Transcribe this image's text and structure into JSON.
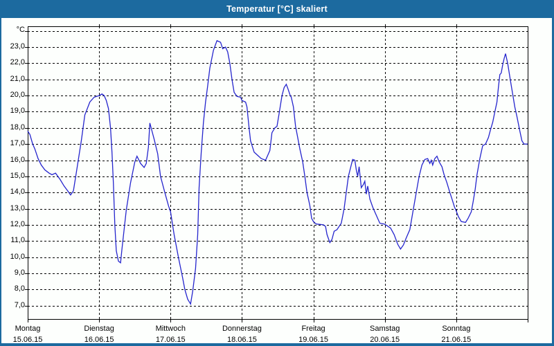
{
  "window": {
    "title": "Temperatur [°C] skaliert"
  },
  "colors": {
    "frame_blue": "#1c6a9f",
    "titlebar_bg": "#1c6a9f",
    "line_blue": "#2424cd",
    "grid_black": "#000000",
    "plot_bg": "#fdfffd"
  },
  "chart_data": {
    "type": "line",
    "title": "Temperatur [°C] skaliert",
    "ylabel": "°C",
    "xlabel": "",
    "grid": "dashed",
    "legend": "none",
    "ylim": [
      6.17,
      24.29
    ],
    "xlim_days": [
      0,
      7
    ],
    "ygrid_values": [
      7,
      8,
      9,
      10,
      11,
      12,
      13,
      14,
      15,
      16,
      17,
      18,
      19,
      20,
      21,
      22,
      23,
      24
    ],
    "yticks": [
      {
        "v": 23,
        "label": "23,0"
      },
      {
        "v": 22,
        "label": "22,0"
      },
      {
        "v": 21,
        "label": "21,0"
      },
      {
        "v": 20,
        "label": "20,0"
      },
      {
        "v": 19,
        "label": "19,0"
      },
      {
        "v": 18,
        "label": "18,0"
      },
      {
        "v": 17,
        "label": "17,0"
      },
      {
        "v": 16,
        "label": "16,0"
      },
      {
        "v": 15,
        "label": "15,0"
      },
      {
        "v": 14,
        "label": "14,0"
      },
      {
        "v": 13,
        "label": "13,0"
      },
      {
        "v": 12,
        "label": "12,0"
      },
      {
        "v": 11,
        "label": "11,0"
      },
      {
        "v": 10,
        "label": "10,0"
      },
      {
        "v": 9,
        "label": "9,0"
      },
      {
        "v": 8,
        "label": "8,0"
      },
      {
        "v": 7,
        "label": "7,0"
      }
    ],
    "unit_tick_value": 24,
    "categories": [
      {
        "day": 0,
        "name": "Montag",
        "date": "15.06.15"
      },
      {
        "day": 1,
        "name": "Dienstag",
        "date": "16.06.15"
      },
      {
        "day": 2,
        "name": "Mittwoch",
        "date": "17.06.15"
      },
      {
        "day": 3,
        "name": "Donnerstag",
        "date": "18.06.15"
      },
      {
        "day": 4,
        "name": "Freitag",
        "date": "19.06.15"
      },
      {
        "day": 5,
        "name": "Samstag",
        "date": "20.06.15"
      },
      {
        "day": 6,
        "name": "Sonntag",
        "date": "21.06.15"
      }
    ],
    "series": [
      {
        "name": "Temperatur",
        "color": "#2424cd",
        "points": [
          [
            0.0,
            17.8
          ],
          [
            0.03,
            17.6
          ],
          [
            0.07,
            17.0
          ],
          [
            0.1,
            16.7
          ],
          [
            0.145,
            16.1
          ],
          [
            0.19,
            15.7
          ],
          [
            0.24,
            15.4
          ],
          [
            0.3,
            15.2
          ],
          [
            0.34,
            15.1
          ],
          [
            0.39,
            15.2
          ],
          [
            0.455,
            14.8
          ],
          [
            0.51,
            14.4
          ],
          [
            0.56,
            14.1
          ],
          [
            0.6,
            13.85
          ],
          [
            0.64,
            14.1
          ],
          [
            0.68,
            15.2
          ],
          [
            0.75,
            17.2
          ],
          [
            0.8,
            18.8
          ],
          [
            0.87,
            19.6
          ],
          [
            0.93,
            19.9
          ],
          [
            1.0,
            20.0
          ],
          [
            1.04,
            20.1
          ],
          [
            1.07,
            20.0
          ],
          [
            1.1,
            19.7
          ],
          [
            1.13,
            19.2
          ],
          [
            1.16,
            18.0
          ],
          [
            1.18,
            16.5
          ],
          [
            1.2,
            14.5
          ],
          [
            1.22,
            12.0
          ],
          [
            1.24,
            10.4
          ],
          [
            1.27,
            9.75
          ],
          [
            1.3,
            9.65
          ],
          [
            1.32,
            10.5
          ],
          [
            1.38,
            12.9
          ],
          [
            1.44,
            14.6
          ],
          [
            1.5,
            15.9
          ],
          [
            1.53,
            16.25
          ],
          [
            1.58,
            15.8
          ],
          [
            1.63,
            15.55
          ],
          [
            1.66,
            15.8
          ],
          [
            1.69,
            16.8
          ],
          [
            1.71,
            18.3
          ],
          [
            1.74,
            17.8
          ],
          [
            1.77,
            17.3
          ],
          [
            1.82,
            16.4
          ],
          [
            1.86,
            15.0
          ],
          [
            1.92,
            14.0
          ],
          [
            1.97,
            13.2
          ],
          [
            2.0,
            12.8
          ],
          [
            2.05,
            11.4
          ],
          [
            2.11,
            10.0
          ],
          [
            2.17,
            8.7
          ],
          [
            2.2,
            8.0
          ],
          [
            2.24,
            7.4
          ],
          [
            2.28,
            7.1
          ],
          [
            2.31,
            7.9
          ],
          [
            2.35,
            9.3
          ],
          [
            2.38,
            11.4
          ],
          [
            2.4,
            14.3
          ],
          [
            2.43,
            16.5
          ],
          [
            2.46,
            18.3
          ],
          [
            2.49,
            19.6
          ],
          [
            2.52,
            20.6
          ],
          [
            2.55,
            21.7
          ],
          [
            2.6,
            22.8
          ],
          [
            2.65,
            23.4
          ],
          [
            2.7,
            23.3
          ],
          [
            2.73,
            22.9
          ],
          [
            2.77,
            23.0
          ],
          [
            2.8,
            22.7
          ],
          [
            2.83,
            22.0
          ],
          [
            2.86,
            21.0
          ],
          [
            2.89,
            20.2
          ],
          [
            2.93,
            19.95
          ],
          [
            2.98,
            19.9
          ],
          [
            3.0,
            19.7
          ],
          [
            3.05,
            19.6
          ],
          [
            3.07,
            19.3
          ],
          [
            3.1,
            18.0
          ],
          [
            3.12,
            17.2
          ],
          [
            3.17,
            16.5
          ],
          [
            3.22,
            16.3
          ],
          [
            3.27,
            16.1
          ],
          [
            3.33,
            16.0
          ],
          [
            3.39,
            16.6
          ],
          [
            3.42,
            17.7
          ],
          [
            3.46,
            18.0
          ],
          [
            3.49,
            18.1
          ],
          [
            3.52,
            18.9
          ],
          [
            3.56,
            20.0
          ],
          [
            3.59,
            20.5
          ],
          [
            3.62,
            20.7
          ],
          [
            3.645,
            20.4
          ],
          [
            3.675,
            20.0
          ],
          [
            3.69,
            19.9
          ],
          [
            3.72,
            19.3
          ],
          [
            3.75,
            18.1
          ],
          [
            3.78,
            17.4
          ],
          [
            3.81,
            16.7
          ],
          [
            3.85,
            15.9
          ],
          [
            3.88,
            15.0
          ],
          [
            3.91,
            14.0
          ],
          [
            3.95,
            13.2
          ],
          [
            3.975,
            12.4
          ],
          [
            4.0,
            12.2
          ],
          [
            4.04,
            12.05
          ],
          [
            4.14,
            12.0
          ],
          [
            4.17,
            11.9
          ],
          [
            4.19,
            11.4
          ],
          [
            4.23,
            10.9
          ],
          [
            4.26,
            11.1
          ],
          [
            4.29,
            11.6
          ],
          [
            4.33,
            11.7
          ],
          [
            4.36,
            11.9
          ],
          [
            4.39,
            12.1
          ],
          [
            4.43,
            13.0
          ],
          [
            4.46,
            14.0
          ],
          [
            4.49,
            15.0
          ],
          [
            4.53,
            15.7
          ],
          [
            4.55,
            16.05
          ],
          [
            4.58,
            16.0
          ],
          [
            4.6,
            15.4
          ],
          [
            4.62,
            15.0
          ],
          [
            4.64,
            15.6
          ],
          [
            4.67,
            14.3
          ],
          [
            4.7,
            14.5
          ],
          [
            4.72,
            14.7
          ],
          [
            4.74,
            13.9
          ],
          [
            4.76,
            14.4
          ],
          [
            4.79,
            13.6
          ],
          [
            4.83,
            13.1
          ],
          [
            4.88,
            12.6
          ],
          [
            4.93,
            12.1
          ],
          [
            4.99,
            12.05
          ],
          [
            5.03,
            11.95
          ],
          [
            5.08,
            11.8
          ],
          [
            5.13,
            11.4
          ],
          [
            5.18,
            10.8
          ],
          [
            5.22,
            10.5
          ],
          [
            5.26,
            10.75
          ],
          [
            5.3,
            11.2
          ],
          [
            5.35,
            11.7
          ],
          [
            5.4,
            13.0
          ],
          [
            5.44,
            14.0
          ],
          [
            5.48,
            15.0
          ],
          [
            5.52,
            15.7
          ],
          [
            5.56,
            16.05
          ],
          [
            5.6,
            16.1
          ],
          [
            5.63,
            15.8
          ],
          [
            5.65,
            16.0
          ],
          [
            5.67,
            15.7
          ],
          [
            5.7,
            16.1
          ],
          [
            5.73,
            16.25
          ],
          [
            5.76,
            15.9
          ],
          [
            5.8,
            15.6
          ],
          [
            5.83,
            15.1
          ],
          [
            5.87,
            14.6
          ],
          [
            5.91,
            14.0
          ],
          [
            5.94,
            13.6
          ],
          [
            5.975,
            13.1
          ],
          [
            6.0,
            12.85
          ],
          [
            6.03,
            12.5
          ],
          [
            6.07,
            12.2
          ],
          [
            6.13,
            12.15
          ],
          [
            6.165,
            12.4
          ],
          [
            6.21,
            12.8
          ],
          [
            6.235,
            13.4
          ],
          [
            6.265,
            14.2
          ],
          [
            6.29,
            15.1
          ],
          [
            6.33,
            16.1
          ],
          [
            6.37,
            16.9
          ],
          [
            6.41,
            17.0
          ],
          [
            6.45,
            17.4
          ],
          [
            6.48,
            17.9
          ],
          [
            6.51,
            18.35
          ],
          [
            6.54,
            19.0
          ],
          [
            6.57,
            19.6
          ],
          [
            6.59,
            20.5
          ],
          [
            6.61,
            21.3
          ],
          [
            6.63,
            21.4
          ],
          [
            6.65,
            21.9
          ],
          [
            6.67,
            22.3
          ],
          [
            6.69,
            22.6
          ],
          [
            6.72,
            22.0
          ],
          [
            6.76,
            20.9
          ],
          [
            6.79,
            20.1
          ],
          [
            6.82,
            19.3
          ],
          [
            6.85,
            18.7
          ],
          [
            6.89,
            17.8
          ],
          [
            6.92,
            17.2
          ],
          [
            6.95,
            17.0
          ],
          [
            7.0,
            17.0
          ]
        ]
      }
    ]
  }
}
